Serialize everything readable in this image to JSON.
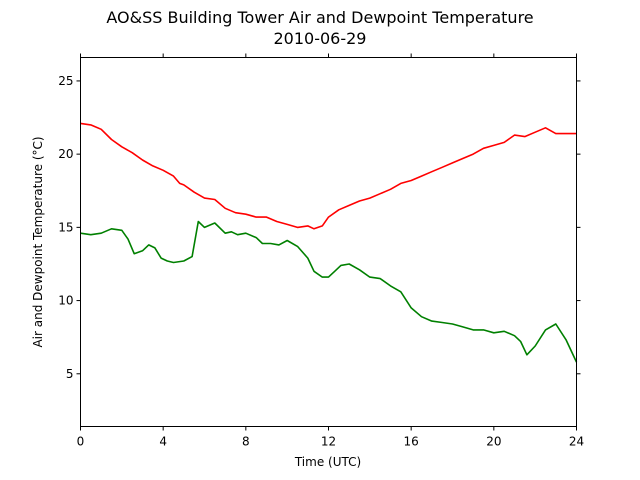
{
  "chart_data": {
    "type": "line",
    "title": "AO&SS Building Tower Air and Dewpoint Temperature",
    "subtitle": "2010-06-29",
    "xlabel": "Time (UTC)",
    "ylabel": "Air and Dewpoint Temperature (°C)",
    "xlim": [
      0,
      24
    ],
    "ylim": [
      1.4,
      26.6
    ],
    "xticks": [
      "0",
      "4",
      "8",
      "12",
      "16",
      "20",
      "24"
    ],
    "yticks": [
      "5",
      "10",
      "15",
      "20",
      "25"
    ],
    "grid": false,
    "legend": "none",
    "series": [
      {
        "color": "#ff0000",
        "x": [
          0,
          0.5,
          1,
          1.5,
          2,
          2.5,
          3,
          3.5,
          4,
          4.5,
          4.8,
          5,
          5.5,
          6,
          6.5,
          7,
          7.5,
          8,
          8.5,
          9,
          9.5,
          10,
          10.5,
          11,
          11.3,
          11.7,
          12,
          12.5,
          13,
          13.5,
          14,
          14.5,
          15,
          15.5,
          16,
          16.5,
          17,
          17.5,
          18,
          18.5,
          19,
          19.5,
          20,
          20.5,
          21,
          21.5,
          22,
          22.5,
          23,
          23.5,
          24
        ],
        "y": [
          22.1,
          22.0,
          21.7,
          21.0,
          20.5,
          20.1,
          19.6,
          19.2,
          18.9,
          18.5,
          18.0,
          17.9,
          17.4,
          17.0,
          16.9,
          16.3,
          16.0,
          15.9,
          15.7,
          15.7,
          15.4,
          15.2,
          15.0,
          15.1,
          14.9,
          15.1,
          15.7,
          16.2,
          16.5,
          16.8,
          17.0,
          17.3,
          17.6,
          18.0,
          18.2,
          18.5,
          18.8,
          19.1,
          19.4,
          19.7,
          20.0,
          20.4,
          20.6,
          20.8,
          21.3,
          21.2,
          21.5,
          21.8,
          21.4,
          21.4,
          21.4
        ]
      },
      {
        "color": "#008000",
        "x": [
          0,
          0.5,
          1,
          1.5,
          2,
          2.3,
          2.6,
          3,
          3.3,
          3.6,
          3.9,
          4.2,
          4.5,
          5,
          5.4,
          5.7,
          6,
          6.5,
          7,
          7.3,
          7.6,
          8,
          8.5,
          8.8,
          9.2,
          9.6,
          10,
          10.5,
          11,
          11.3,
          11.7,
          12,
          12.3,
          12.6,
          13,
          13.5,
          14,
          14.5,
          15,
          15.5,
          16,
          16.5,
          17,
          17.5,
          18,
          18.5,
          19,
          19.5,
          20,
          20.5,
          21,
          21.3,
          21.6,
          22,
          22.5,
          23,
          23.5,
          24
        ],
        "y": [
          14.6,
          14.5,
          14.6,
          14.9,
          14.8,
          14.2,
          13.2,
          13.4,
          13.8,
          13.6,
          12.9,
          12.7,
          12.6,
          12.7,
          13.0,
          15.4,
          15.0,
          15.3,
          14.6,
          14.7,
          14.5,
          14.6,
          14.3,
          13.9,
          13.9,
          13.8,
          14.1,
          13.7,
          12.9,
          12.0,
          11.6,
          11.6,
          12.0,
          12.4,
          12.5,
          12.1,
          11.6,
          11.5,
          11.0,
          10.6,
          9.5,
          8.9,
          8.6,
          8.5,
          8.4,
          8.2,
          8.0,
          8.0,
          7.8,
          7.9,
          7.6,
          7.2,
          6.3,
          6.9,
          8.0,
          8.4,
          7.3,
          5.8
        ]
      }
    ]
  }
}
